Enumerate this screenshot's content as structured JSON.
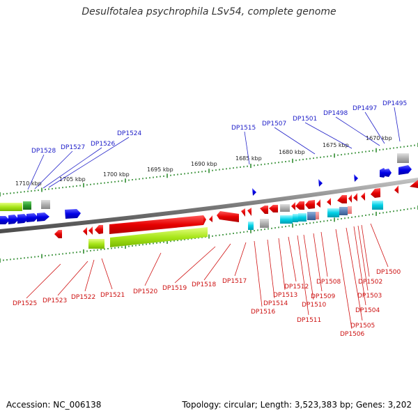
{
  "title": "Desulfotalea psychrophila LSv54, complete genome",
  "footer": {
    "accession": "Accession: NC_006138",
    "topology": "Topology: circular; Length: 3,523,383 bp; Genes: 3,202"
  },
  "scale_labels": [
    "1710 kbp",
    "1705 kbp",
    "1700 kbp",
    "1695 kbp",
    "1690 kbp",
    "1685 kbp",
    "1680 kbp",
    "1675 kbp",
    "1670 kbp"
  ],
  "top_labels": [
    "DP1528",
    "DP1527",
    "DP1526",
    "DP1524",
    "DP1515",
    "DP1507",
    "DP1501",
    "DP1498",
    "DP1497",
    "DP1495"
  ],
  "bottom_labels": [
    "DP1525",
    "DP1523",
    "DP1522",
    "DP1521",
    "DP1520",
    "DP1519",
    "DP1518",
    "DP1517",
    "DP1516",
    "DP1514",
    "DP1513",
    "DP1512",
    "DP1511",
    "DP1510",
    "DP1509",
    "DP1508",
    "DP1506",
    "DP1505",
    "DP1504",
    "DP1503",
    "DP1502",
    "DP1500"
  ],
  "colors": {
    "forward_strand": "#1a1ae6",
    "reverse_strand": "#e61a1a",
    "backbone": "#8c8c8c",
    "scale_ticks": "#2e8b2e",
    "label_top": "#1c1cc8",
    "label_bottom": "#cc1010"
  }
}
